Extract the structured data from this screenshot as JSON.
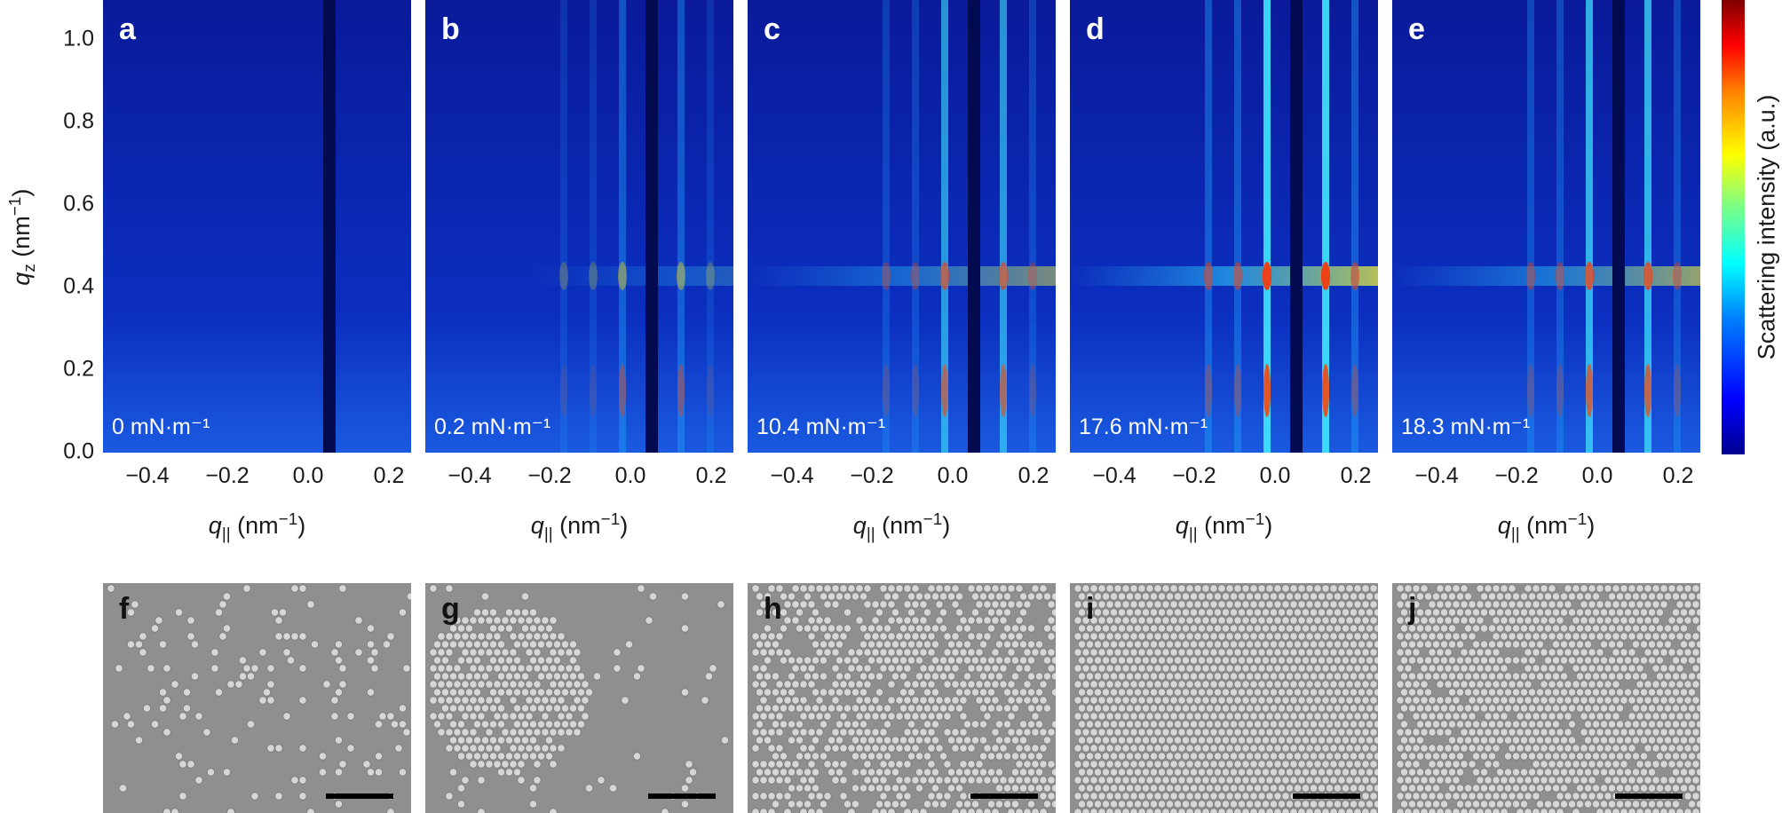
{
  "y_axis": {
    "label_var": "q",
    "label_sub": "z",
    "label_unit": " (nm",
    "label_exp": "−1",
    "label_close": ")",
    "ticks": [
      "1.0",
      "0.8",
      "0.6",
      "0.4",
      "0.2",
      "0.0"
    ]
  },
  "x_axis": {
    "label_var": "q",
    "label_sub": "||",
    "label_unit": " (nm",
    "label_exp": "−1",
    "label_close": ")",
    "ticks": [
      "−0.4",
      "−0.2",
      "0.0",
      "0.2"
    ]
  },
  "colorbar": {
    "label": "Scattering intensity (a.u.)"
  },
  "panels": [
    {
      "letter": "a",
      "pressure": "0 mN·m⁻¹"
    },
    {
      "letter": "b",
      "pressure": "0.2 mN·m⁻¹"
    },
    {
      "letter": "c",
      "pressure": "10.4 mN·m⁻¹"
    },
    {
      "letter": "d",
      "pressure": "17.6 mN·m⁻¹"
    },
    {
      "letter": "e",
      "pressure": "18.3 mN·m⁻¹"
    }
  ],
  "sem_panels": [
    {
      "letter": "f"
    },
    {
      "letter": "g"
    },
    {
      "letter": "h"
    },
    {
      "letter": "i"
    },
    {
      "letter": "j"
    }
  ]
}
